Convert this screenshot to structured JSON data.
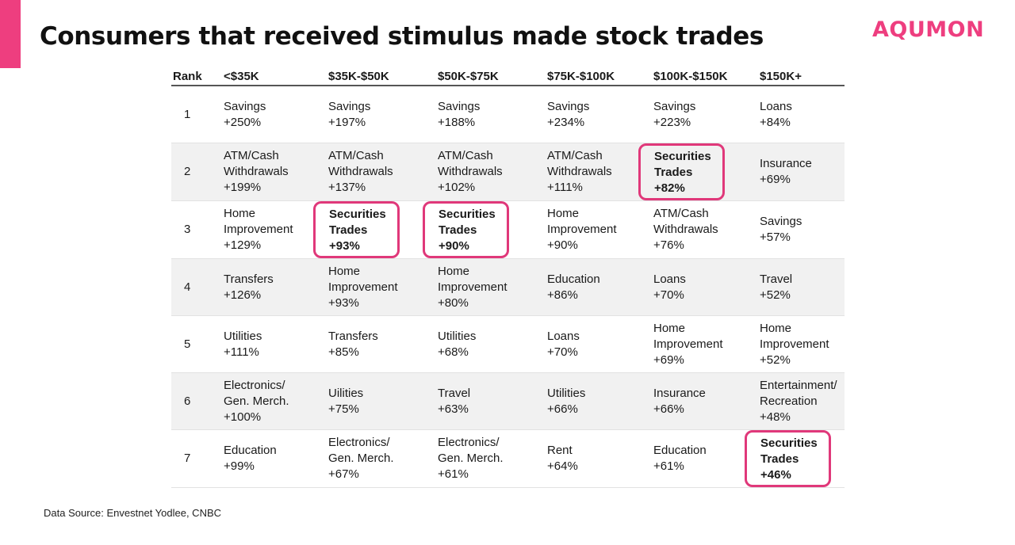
{
  "header": {
    "title": "Consumers that received stimulus made stock trades",
    "logo": "AQUMON"
  },
  "table": {
    "headers": [
      "Rank",
      "<$35K",
      "$35K-$50K",
      "$50K-$75K",
      "$75K-$100K",
      "$100K-$150K",
      "$150K+"
    ],
    "rows": [
      {
        "rank": "1",
        "cells": [
          {
            "text": "Savings\n+250%"
          },
          {
            "text": "Savings\n+197%"
          },
          {
            "text": "Savings\n+188%"
          },
          {
            "text": "Savings\n+234%"
          },
          {
            "text": "Savings\n+223%"
          },
          {
            "text": "Loans\n+84%"
          }
        ]
      },
      {
        "rank": "2",
        "cells": [
          {
            "text": "ATM/Cash\nWithdrawals\n+199%"
          },
          {
            "text": "ATM/Cash\nWithdrawals\n+137%"
          },
          {
            "text": "ATM/Cash\nWithdrawals\n+102%"
          },
          {
            "text": "ATM/Cash\nWithdrawals\n+111%"
          },
          {
            "text": "Securities\nTrades\n+82%",
            "highlight": true
          },
          {
            "text": "Insurance\n+69%"
          }
        ]
      },
      {
        "rank": "3",
        "cells": [
          {
            "text": "Home\nImprovement\n+129%"
          },
          {
            "text": "Securities\nTrades\n+93%",
            "highlight": true
          },
          {
            "text": "Securities\nTrades\n+90%",
            "highlight": true
          },
          {
            "text": "Home\nImprovement\n+90%"
          },
          {
            "text": "ATM/Cash\nWithdrawals\n+76%"
          },
          {
            "text": "Savings\n+57%"
          }
        ]
      },
      {
        "rank": "4",
        "cells": [
          {
            "text": "Transfers\n+126%"
          },
          {
            "text": "Home\nImprovement\n+93%"
          },
          {
            "text": "Home\nImprovement\n+80%"
          },
          {
            "text": "Education\n+86%"
          },
          {
            "text": "Loans\n+70%"
          },
          {
            "text": "Travel\n+52%"
          }
        ]
      },
      {
        "rank": "5",
        "cells": [
          {
            "text": "Utilities\n+111%"
          },
          {
            "text": "Transfers\n+85%"
          },
          {
            "text": "Utilities\n+68%"
          },
          {
            "text": "Loans\n+70%"
          },
          {
            "text": "Home\nImprovement\n+69%"
          },
          {
            "text": "Home\nImprovement\n+52%"
          }
        ]
      },
      {
        "rank": "6",
        "cells": [
          {
            "text": "Electronics/\nGen. Merch.\n+100%"
          },
          {
            "text": "Uilities\n+75%"
          },
          {
            "text": "Travel\n+63%"
          },
          {
            "text": "Utilities\n+66%"
          },
          {
            "text": "Insurance\n+66%"
          },
          {
            "text": "Entertainment/\nRecreation\n+48%"
          }
        ]
      },
      {
        "rank": "7",
        "cells": [
          {
            "text": "Education\n+99%"
          },
          {
            "text": "Electronics/\nGen. Merch.\n+67%"
          },
          {
            "text": "Electronics/\nGen. Merch.\n+61%"
          },
          {
            "text": "Rent\n+64%"
          },
          {
            "text": "Education\n+61%"
          },
          {
            "text": "Securities\nTrades\n+46%",
            "highlight": true
          }
        ]
      }
    ]
  },
  "footer": {
    "source": "Data Source: Envestnet Yodlee, CNBC"
  },
  "colors": {
    "accent": "#ee3e7f",
    "highlight_border": "#e0387a"
  }
}
